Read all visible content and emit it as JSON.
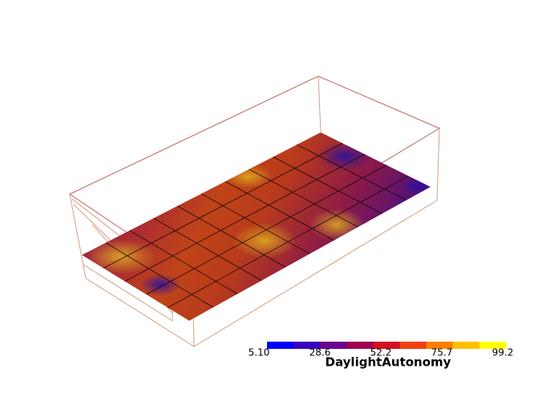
{
  "colorbar": {
    "title": "DaylightAutonomy",
    "ticks": [
      "5.10",
      "28.6",
      "52.2",
      "75.7",
      "99.2"
    ]
  }
}
